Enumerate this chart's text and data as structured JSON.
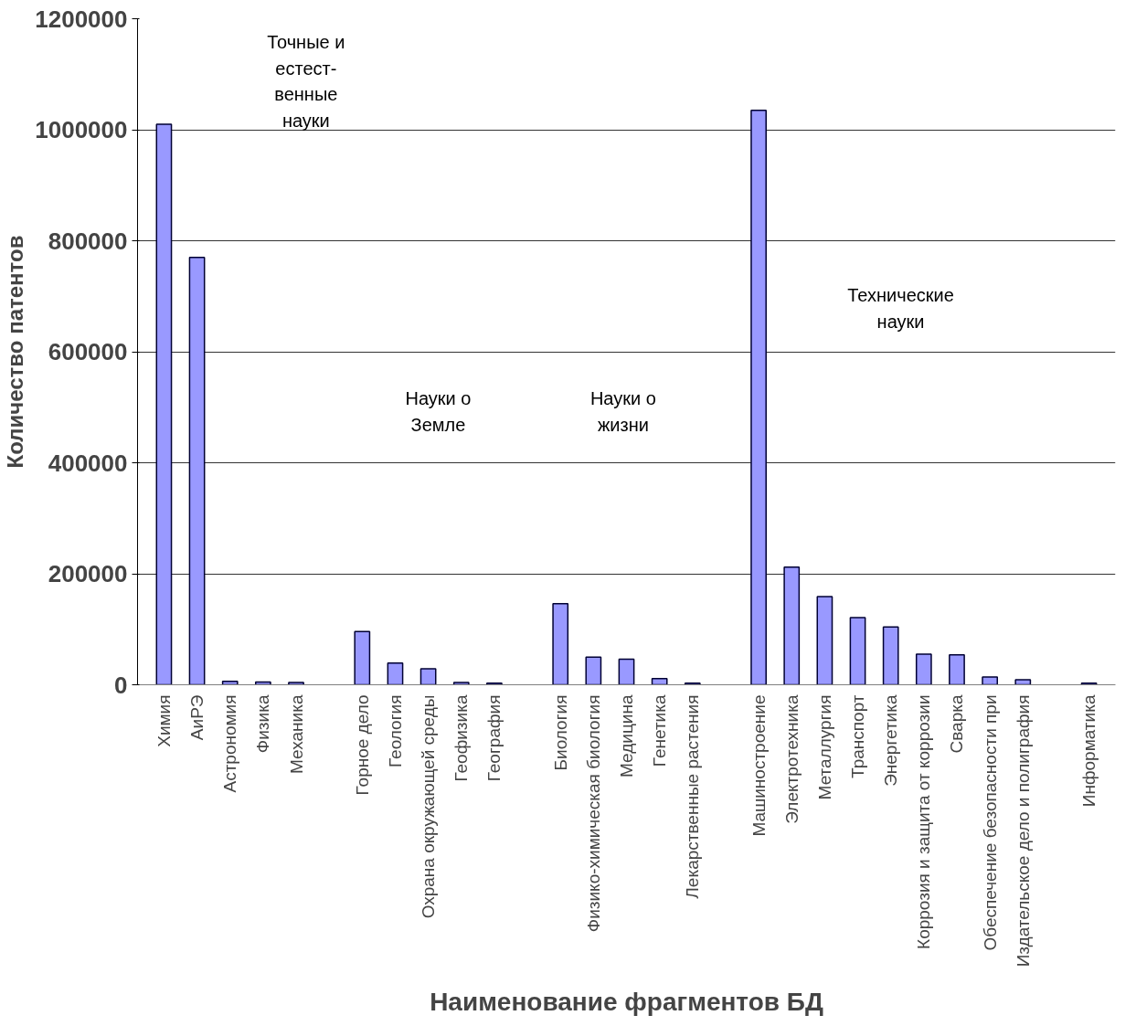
{
  "chart_data": {
    "type": "bar",
    "xlabel": "Наименование фрагментов БД",
    "ylabel": "Количество патентов",
    "categories": [
      "Химия",
      "АиРЭ",
      "Астрономия",
      "Физика",
      "Механика",
      null,
      "Горное дело",
      "Геология",
      "Охрана окружающей среды",
      "Геофизика",
      "География",
      null,
      "Биология",
      "Физико-химическая биология",
      "Медицина",
      "Генетика",
      "Лекарственные растения",
      null,
      "Машиностроение",
      "Электротехника",
      "Металлургия",
      "Транспорт",
      "Энергетика",
      "Коррозия и защита от коррозии",
      "Сварка",
      "Обеспечение безопасности при",
      "Издательское дело и полиграфия",
      null,
      "Информатика"
    ],
    "values": [
      1010000,
      770000,
      6000,
      5000,
      4000,
      null,
      96000,
      39000,
      29000,
      4000,
      3000,
      null,
      146000,
      50000,
      46000,
      11000,
      3000,
      null,
      1035000,
      212000,
      159000,
      121000,
      104000,
      55000,
      54000,
      14000,
      9000,
      null,
      3000
    ],
    "color": "#9999ff",
    "ylim": [
      0,
      1200000
    ],
    "yticks": [
      0,
      200000,
      400000,
      600000,
      800000,
      1000000,
      1200000
    ],
    "grid": "y",
    "annotations": [
      "Точные и\nестест-\nвенные\nнауки",
      "Науки о\nЗемле",
      "Науки о\nжизни",
      "Технические\nнауки"
    ]
  }
}
